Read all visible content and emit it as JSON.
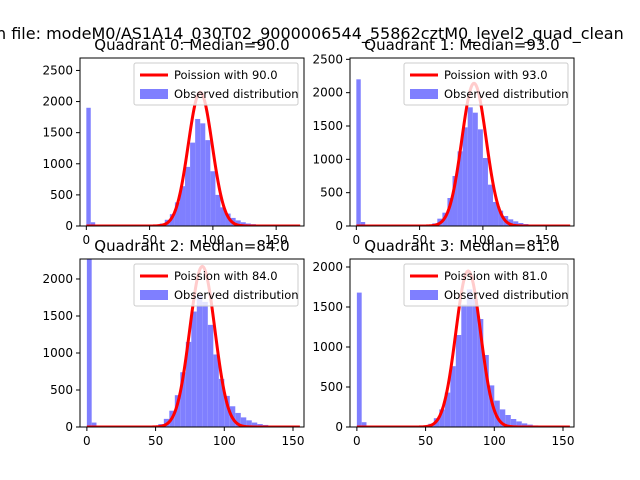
{
  "figure": {
    "suptitle": "n file: modeM0/AS1A14_030T02_9000006544_55862cztM0_level2_quad_clean"
  },
  "colors": {
    "bar": "#7f7fff",
    "line": "#ff0000",
    "background": "#ffffff"
  },
  "chart_data": [
    {
      "type": "bar",
      "title": "Quadrant 0: Median=90.0",
      "median": 90.0,
      "xlim": [
        -5,
        172
      ],
      "ylim": [
        0,
        2700
      ],
      "xticks": [
        0,
        50,
        100,
        150
      ],
      "yticks": [
        0,
        500,
        1000,
        1500,
        2000,
        2500
      ],
      "zero_count": 1900,
      "poisson_peak": 2150,
      "hist_bins": [
        [
          58,
          40
        ],
        [
          62,
          100
        ],
        [
          66,
          190
        ],
        [
          70,
          380
        ],
        [
          74,
          640
        ],
        [
          78,
          950
        ],
        [
          82,
          1340
        ],
        [
          86,
          1720
        ],
        [
          90,
          1650
        ],
        [
          94,
          1380
        ],
        [
          98,
          880
        ],
        [
          102,
          500
        ],
        [
          106,
          300
        ],
        [
          110,
          200
        ],
        [
          114,
          130
        ],
        [
          118,
          90
        ],
        [
          122,
          60
        ],
        [
          126,
          40
        ],
        [
          130,
          30
        ],
        [
          134,
          20
        ],
        [
          138,
          12
        ],
        [
          142,
          8
        ]
      ],
      "legend": [
        "Poission with 90.0",
        "Observed distribution"
      ]
    },
    {
      "type": "bar",
      "title": "Quadrant 1: Median=93.0",
      "median": 93.0,
      "xlim": [
        -5,
        172
      ],
      "ylim": [
        0,
        2520
      ],
      "xticks": [
        0,
        50,
        100,
        150
      ],
      "yticks": [
        0,
        500,
        1000,
        1500,
        2000,
        2500
      ],
      "zero_count": 2200,
      "poisson_peak": 2140,
      "hist_bins": [
        [
          60,
          40
        ],
        [
          64,
          110
        ],
        [
          68,
          200
        ],
        [
          72,
          420
        ],
        [
          76,
          750
        ],
        [
          80,
          1120
        ],
        [
          84,
          1480
        ],
        [
          88,
          1780
        ],
        [
          92,
          1700
        ],
        [
          96,
          1450
        ],
        [
          100,
          1020
        ],
        [
          104,
          620
        ],
        [
          108,
          360
        ],
        [
          112,
          230
        ],
        [
          116,
          150
        ],
        [
          120,
          100
        ],
        [
          124,
          70
        ],
        [
          128,
          45
        ],
        [
          132,
          30
        ],
        [
          136,
          20
        ],
        [
          140,
          12
        ],
        [
          144,
          8
        ]
      ],
      "legend": [
        "Poission with 93.0",
        "Observed distribution"
      ]
    },
    {
      "type": "bar",
      "title": "Quadrant 2: Median=84.0",
      "median": 84.0,
      "xlim": [
        -5,
        158
      ],
      "ylim": [
        0,
        2270
      ],
      "xticks": [
        0,
        50,
        100,
        150
      ],
      "yticks": [
        0,
        500,
        1000,
        1500,
        2000
      ],
      "zero_count": 2270,
      "poisson_peak": 2170,
      "hist_bins": [
        [
          52,
          40
        ],
        [
          56,
          110
        ],
        [
          60,
          220
        ],
        [
          64,
          430
        ],
        [
          68,
          740
        ],
        [
          72,
          1150
        ],
        [
          76,
          1560
        ],
        [
          80,
          1790
        ],
        [
          84,
          1690
        ],
        [
          88,
          1380
        ],
        [
          92,
          980
        ],
        [
          96,
          650
        ],
        [
          100,
          420
        ],
        [
          104,
          280
        ],
        [
          108,
          190
        ],
        [
          112,
          130
        ],
        [
          116,
          90
        ],
        [
          120,
          60
        ],
        [
          124,
          40
        ],
        [
          128,
          28
        ],
        [
          132,
          18
        ],
        [
          136,
          12
        ]
      ],
      "legend": [
        "Poission with 84.0",
        "Observed distribution"
      ]
    },
    {
      "type": "bar",
      "title": "Quadrant 3: Median=81.0",
      "median": 81.0,
      "xlim": [
        -5,
        158
      ],
      "ylim": [
        0,
        2100
      ],
      "xticks": [
        0,
        50,
        100,
        150
      ],
      "yticks": [
        0,
        500,
        1000,
        1500,
        2000
      ],
      "zero_count": 1680,
      "poisson_peak": 1950,
      "hist_bins": [
        [
          52,
          40
        ],
        [
          56,
          110
        ],
        [
          60,
          220
        ],
        [
          64,
          430
        ],
        [
          68,
          760
        ],
        [
          72,
          1150
        ],
        [
          76,
          1530
        ],
        [
          80,
          1720
        ],
        [
          84,
          1600
        ],
        [
          88,
          1350
        ],
        [
          92,
          900
        ],
        [
          96,
          520
        ],
        [
          100,
          330
        ],
        [
          104,
          220
        ],
        [
          108,
          150
        ],
        [
          112,
          100
        ],
        [
          116,
          70
        ],
        [
          120,
          45
        ],
        [
          124,
          30
        ],
        [
          128,
          20
        ],
        [
          132,
          12
        ],
        [
          136,
          8
        ]
      ],
      "legend": [
        "Poission with 81.0",
        "Observed distribution"
      ]
    }
  ]
}
